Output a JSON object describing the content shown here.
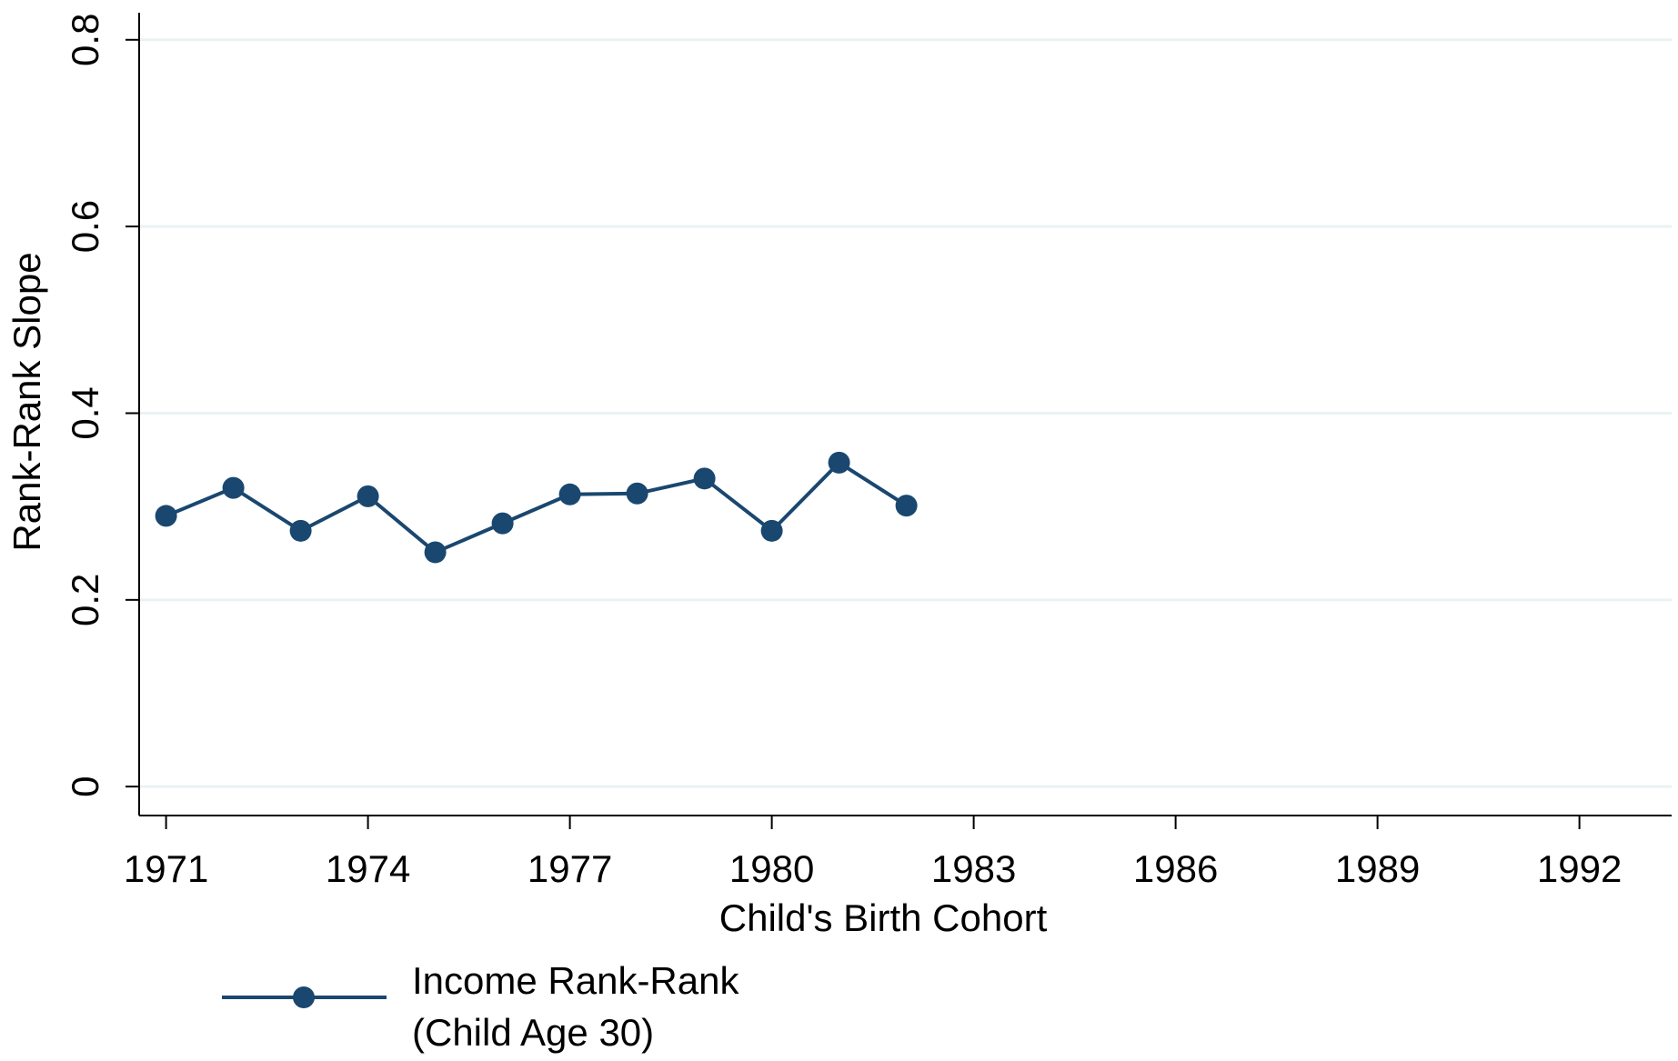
{
  "chart_data": {
    "type": "line",
    "x": [
      1971,
      1972,
      1973,
      1974,
      1975,
      1976,
      1977,
      1978,
      1979,
      1980,
      1981,
      1982
    ],
    "series": [
      {
        "name": "Income Rank-Rank\n(Child Age 30)",
        "color": "#1a476f",
        "values": [
          0.29,
          0.32,
          0.274,
          0.311,
          0.251,
          0.282,
          0.313,
          0.314,
          0.33,
          0.274,
          0.347,
          0.301
        ]
      }
    ],
    "xlabel": "Child's Birth Cohort",
    "ylabel": "Rank-Rank Slope",
    "xlim": [
      1970.6,
      1993.37
    ],
    "ylim": [
      -0.031,
      0.829
    ],
    "xticks": [
      1971,
      1974,
      1977,
      1980,
      1983,
      1986,
      1989,
      1992
    ],
    "yticks": [
      0,
      0.2,
      0.4,
      0.6,
      0.8
    ],
    "grid": true,
    "legend": "bottom-left"
  }
}
